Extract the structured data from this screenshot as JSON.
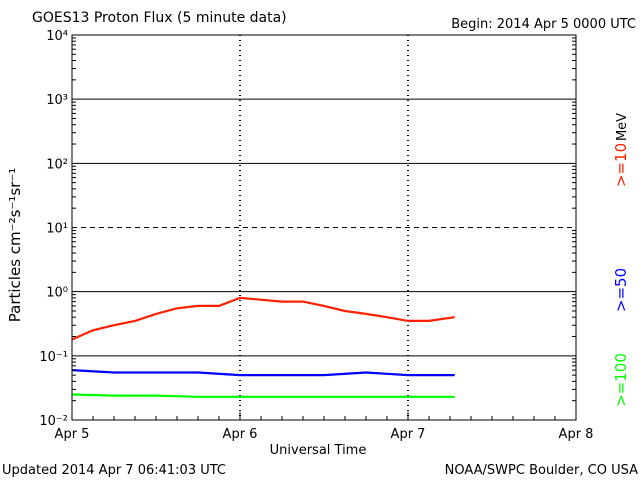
{
  "header": {
    "title": "GOES13 Proton Flux (5 minute data)",
    "begin": "Begin: 2014 Apr 5 0000 UTC"
  },
  "footer": {
    "updated": "Updated 2014 Apr  7 06:41:03 UTC",
    "source": "NOAA/SWPC Boulder, CO USA"
  },
  "chart_data": {
    "type": "line",
    "title": "GOES13 Proton Flux (5 minute data)",
    "xlabel": "Universal Time",
    "ylabel": "Particles cm⁻²s⁻¹sr⁻¹",
    "y_scale": "log",
    "ylim": [
      0.01,
      10000
    ],
    "y_ticks": [
      {
        "value": 0.01,
        "label": "10⁻²"
      },
      {
        "value": 0.1,
        "label": "10⁻¹"
      },
      {
        "value": 1,
        "label": "10⁰"
      },
      {
        "value": 10,
        "label": "10¹"
      },
      {
        "value": 100,
        "label": "10²"
      },
      {
        "value": 1000,
        "label": "10³"
      },
      {
        "value": 10000,
        "label": "10⁴"
      }
    ],
    "x_ticks": [
      {
        "value": "2014-04-05 00:00",
        "label": "Apr 5"
      },
      {
        "value": "2014-04-06 00:00",
        "label": "Apr 6"
      },
      {
        "value": "2014-04-07 00:00",
        "label": "Apr 7"
      },
      {
        "value": "2014-04-08 00:00",
        "label": "Apr 8"
      }
    ],
    "xlim": [
      "2014-04-05 00:00",
      "2014-04-08 00:00"
    ],
    "units_label": "MeV",
    "series": [
      {
        "name": ">=10",
        "color": "#ff2000",
        "x": [
          "2014-04-05 00:00",
          "2014-04-05 03:00",
          "2014-04-05 06:00",
          "2014-04-05 09:00",
          "2014-04-05 12:00",
          "2014-04-05 15:00",
          "2014-04-05 18:00",
          "2014-04-05 21:00",
          "2014-04-06 00:00",
          "2014-04-06 03:00",
          "2014-04-06 06:00",
          "2014-04-06 09:00",
          "2014-04-06 12:00",
          "2014-04-06 15:00",
          "2014-04-06 18:00",
          "2014-04-06 21:00",
          "2014-04-07 00:00",
          "2014-04-07 03:00",
          "2014-04-07 06:40"
        ],
        "values": [
          0.18,
          0.25,
          0.3,
          0.35,
          0.45,
          0.55,
          0.6,
          0.6,
          0.8,
          0.75,
          0.7,
          0.7,
          0.6,
          0.5,
          0.45,
          0.4,
          0.35,
          0.35,
          0.4
        ]
      },
      {
        "name": ">=50",
        "color": "#0000ff",
        "x": [
          "2014-04-05 00:00",
          "2014-04-05 06:00",
          "2014-04-05 12:00",
          "2014-04-05 18:00",
          "2014-04-06 00:00",
          "2014-04-06 06:00",
          "2014-04-06 12:00",
          "2014-04-06 18:00",
          "2014-04-07 00:00",
          "2014-04-07 06:40"
        ],
        "values": [
          0.06,
          0.055,
          0.055,
          0.055,
          0.05,
          0.05,
          0.05,
          0.055,
          0.05,
          0.05
        ]
      },
      {
        "name": ">=100",
        "color": "#00ff00",
        "x": [
          "2014-04-05 00:00",
          "2014-04-05 06:00",
          "2014-04-05 12:00",
          "2014-04-05 18:00",
          "2014-04-06 00:00",
          "2014-04-06 06:00",
          "2014-04-06 12:00",
          "2014-04-06 18:00",
          "2014-04-07 00:00",
          "2014-04-07 06:40"
        ],
        "values": [
          0.025,
          0.024,
          0.024,
          0.023,
          0.023,
          0.023,
          0.023,
          0.023,
          0.023,
          0.023
        ]
      }
    ],
    "grid": true
  }
}
